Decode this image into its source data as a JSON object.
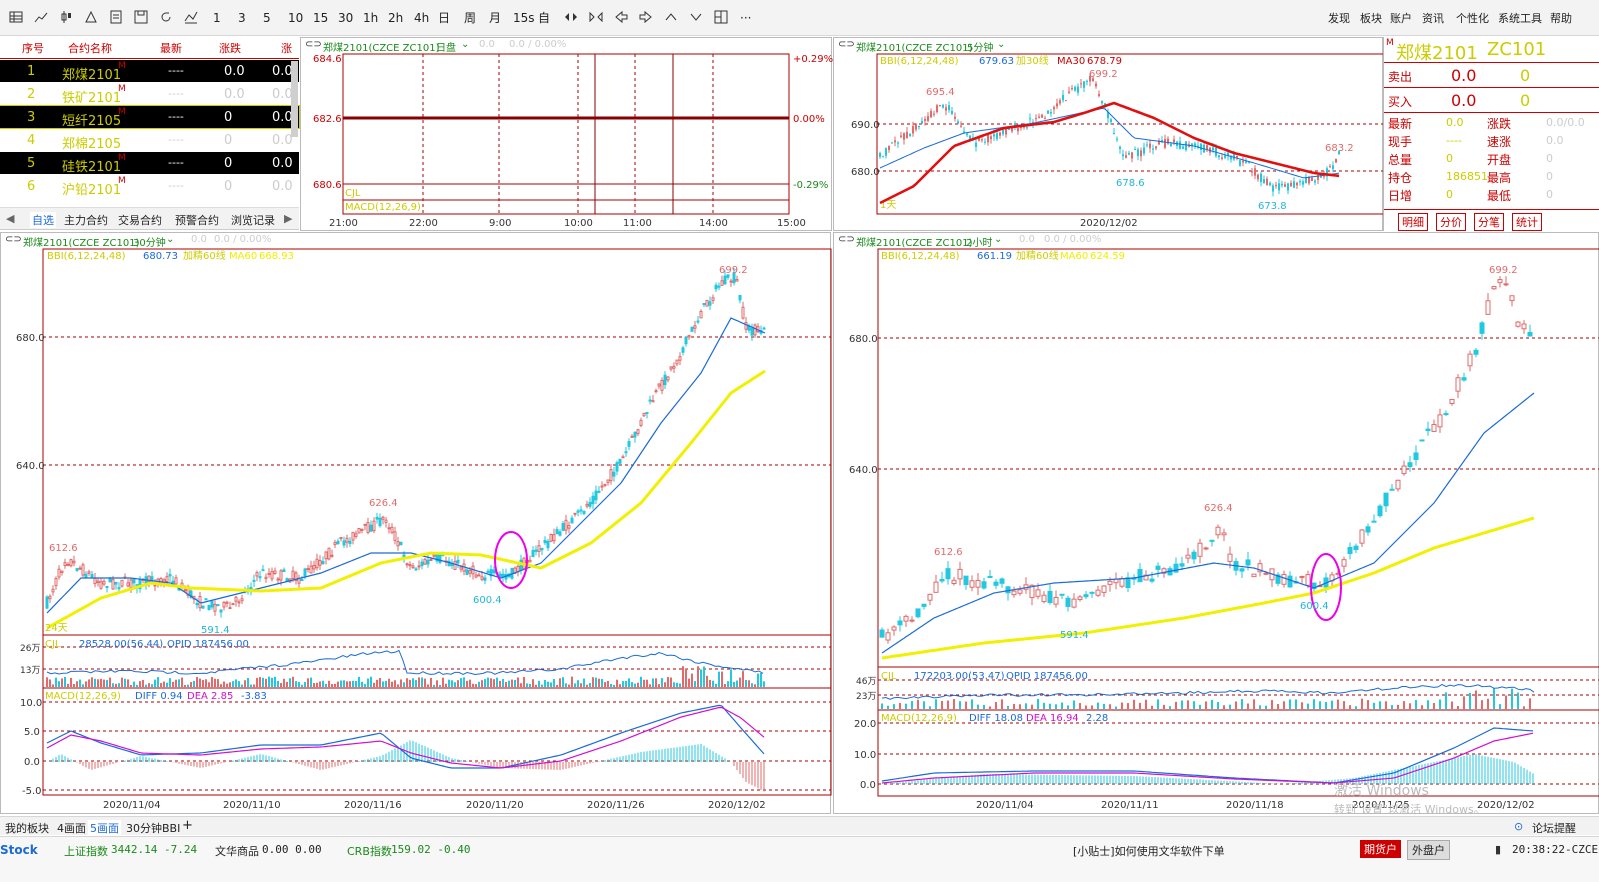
{
  "toolbar": {
    "periods": [
      "1",
      "3",
      "5",
      "10",
      "15",
      "30",
      "1h",
      "2h",
      "4h",
      "日",
      "周",
      "月",
      "15s",
      "自"
    ],
    "menus": [
      "发现",
      "板块",
      "账户",
      "资讯",
      "个性化",
      "系统工具",
      "帮助"
    ],
    "more": "···"
  },
  "watchlist": {
    "headers": [
      "序号",
      "合约名称",
      "最新",
      "涨跌",
      "涨"
    ],
    "rows": [
      {
        "no": "1",
        "name": "郑煤2101",
        "flag": "M",
        "last": "----",
        "chg": "0.0",
        "pct": "0.0"
      },
      {
        "no": "2",
        "name": "铁矿2101",
        "flag": "M",
        "last": "----",
        "chg": "0.0",
        "pct": "0.0"
      },
      {
        "no": "3",
        "name": "短纤2105",
        "flag": "M",
        "last": "----",
        "chg": "0",
        "pct": "0.0"
      },
      {
        "no": "4",
        "name": "郑棉2105",
        "flag": "",
        "last": "----",
        "chg": "0",
        "pct": "0.0"
      },
      {
        "no": "5",
        "name": "硅铁2101",
        "flag": "M",
        "last": "----",
        "chg": "0",
        "pct": "0.0"
      },
      {
        "no": "6",
        "name": "沪铅2101",
        "flag": "M",
        "last": "----",
        "chg": "0",
        "pct": "0.0"
      }
    ],
    "tabs": [
      "自选",
      "主力合约",
      "交易合约",
      "预警合约",
      "浏览记录"
    ]
  },
  "intraday": {
    "title": "郑煤2101(CZCE ZC101)",
    "period": "日盘",
    "pricelabels": [
      "684.6",
      "682.6",
      "680.6"
    ],
    "pctlabels": [
      "+0.29%",
      "0.00%",
      "-0.29%"
    ],
    "header_values": [
      "0.0",
      "0.0 / 0.00%"
    ],
    "cjl": "CJL",
    "macd": "MACD(12,26,9)",
    "times": [
      "21:00",
      "22:00",
      "9:00",
      "10:00",
      "11:00",
      "14:00",
      "15:00"
    ]
  },
  "fivemin": {
    "title": "郑煤2101(CZCE ZC101)",
    "period": "5分钟",
    "bbi_label": "BBI(6,12,24,48)",
    "bbi_value": "679.63",
    "extra": "加30线",
    "ma_label": "MA30",
    "ma_value": "678.79",
    "prices": [
      "690.0",
      "680.0"
    ],
    "annot": [
      "695.4",
      "699.2",
      "678.6",
      "683.2",
      "673.8"
    ],
    "date": "2020/12/02",
    "day": "1天"
  },
  "quote": {
    "flag": "M",
    "name": "郑煤2101",
    "code": "ZC101",
    "sell": {
      "label": "卖出",
      "price": "0.0",
      "vol": "0"
    },
    "buy": {
      "label": "买入",
      "price": "0.0",
      "vol": "0"
    },
    "left": [
      {
        "label": "最新",
        "value": "0.0"
      },
      {
        "label": "现手",
        "value": "----"
      },
      {
        "label": "总量",
        "value": "0"
      },
      {
        "label": "持仓",
        "value": "186851"
      },
      {
        "label": "日增",
        "value": "0"
      }
    ],
    "right": [
      {
        "label": "涨跌",
        "value": "0.0/0.0"
      },
      {
        "label": "速涨",
        "value": "0.0"
      },
      {
        "label": "开盘",
        "value": "0"
      },
      {
        "label": "最高",
        "value": "0"
      },
      {
        "label": "最低",
        "value": "0"
      }
    ],
    "tabs": [
      "明细",
      "分价",
      "分笔",
      "统计"
    ]
  },
  "panel30": {
    "title": "郑煤2101(CZCE ZC101)",
    "period": "30分钟",
    "header_values": [
      "0.0",
      "0.0 / 0.00%"
    ],
    "bbi_label": "BBI(6,12,24,48)",
    "bbi_value": "680.73",
    "extra": "加精60线",
    "ma_label": "MA60",
    "ma_value": "668.93",
    "prices": [
      "680.0",
      "640.0"
    ],
    "annot": [
      "612.6",
      "591.4",
      "626.4",
      "600.4",
      "699.2"
    ],
    "day": "24天",
    "cjl_label": "CJL",
    "cjl_value": "28528.00(56.44)",
    "opid": "OPID 187456.00",
    "vol_ticks": [
      "26万",
      "13万"
    ],
    "macd_label": "MACD(12,26,9)",
    "diff": "DIFF 0.94",
    "dea": "DEA 2.85",
    "macd_value": "-3.83",
    "macd_ticks": [
      "10.0",
      "5.0",
      "0.0",
      "-5.0"
    ],
    "dates": [
      "2020/11/04",
      "2020/11/10",
      "2020/11/16",
      "2020/11/20",
      "2020/11/26",
      "2020/12/02"
    ],
    "chart_data": {
      "type": "line",
      "x": [
        "2020/11/04",
        "2020/11/10",
        "2020/11/16",
        "2020/11/20",
        "2020/11/26",
        "2020/12/02"
      ],
      "series": [
        {
          "values": [
            612.6,
            600,
            626.4,
            600.4,
            650,
            680.73
          ]
        }
      ]
    }
  },
  "panel2h": {
    "title": "郑煤2101(CZCE ZC101)",
    "period": "2小时",
    "header_values": [
      "0.0",
      "0.0 / 0.00%"
    ],
    "bbi_label": "BBI(6,12,24,48)",
    "bbi_value": "661.19",
    "extra": "加精60线",
    "ma_label": "MA60",
    "ma_value": "624.59",
    "prices": [
      "680.0",
      "640.0"
    ],
    "annot": [
      "612.6",
      "591.4",
      "626.4",
      "600.4",
      "699.2"
    ],
    "cjl_label": "CJL",
    "cjl_value": "172203.00(53.47)",
    "opid": "OPID 187456.00",
    "vol_ticks": [
      "46万",
      "23万"
    ],
    "macd_label": "MACD(12,26,9)",
    "diff": "DIFF 18.08",
    "dea": "DEA 16.94",
    "macd_value": "2.28",
    "macd_ticks": [
      "20.0",
      "10.0",
      "0.0"
    ],
    "dates": [
      "2020/11/04",
      "2020/11/11",
      "2020/11/18",
      "2020/11/25",
      "2020/12/02"
    ],
    "watermark1": "激活 Windows",
    "watermark2": "转到\"设置\"以激活 Windows。"
  },
  "bottomtabs": [
    "我的板块",
    "4画面",
    "5画面",
    "30分钟BBI",
    "+"
  ],
  "forum": "论坛提醒",
  "status": {
    "logo": "Stock",
    "sh_label": "上证指数",
    "sh_value": "3442.14 -7.24",
    "wh_label": "文华商品",
    "wh_value": "0.00 0.00",
    "crb_label": "CRB指数",
    "crb_value": "159.02 -0.40",
    "tip": "[小贴士]如何使用文华软件下单",
    "futures": "期货户",
    "outer": "外盘户",
    "time": "20:38:22-CZCE"
  }
}
